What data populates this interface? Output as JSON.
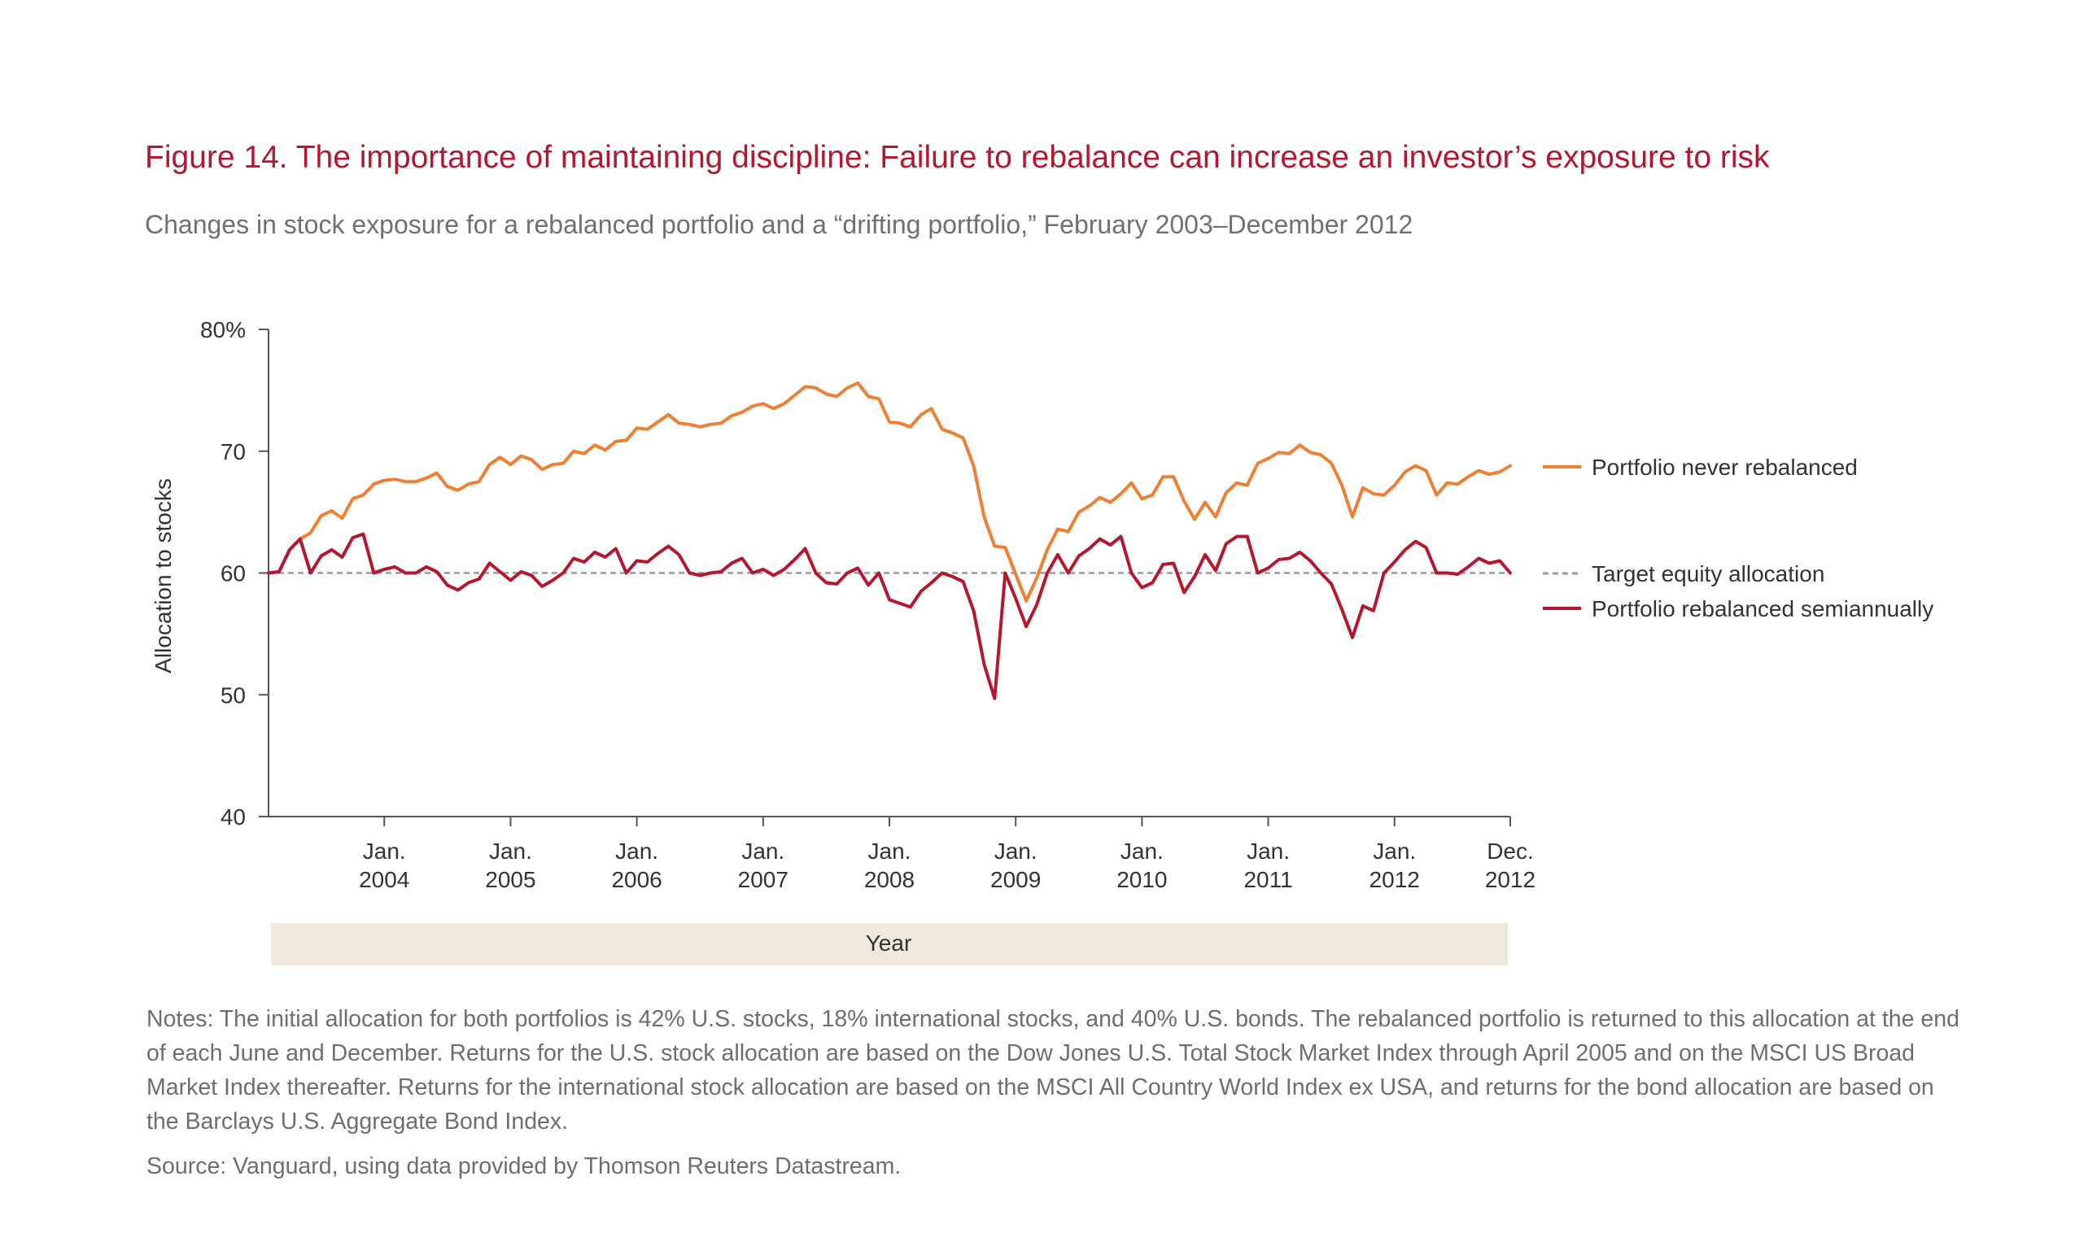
{
  "title": "Figure 14. The importance of maintaining discipline: Failure to rebalance can increase an investor’s exposure to risk",
  "subtitle": "Changes in stock exposure for a rebalanced portfolio and a “drifting portfolio,” February 2003–December 2012",
  "notes": "Notes: The initial allocation for both portfolios is 42% U.S. stocks, 18% international stocks, and 40% U.S. bonds. The rebalanced portfolio is returned to this allocation at the end of each June and December. Returns for the U.S. stock allocation are based on the Dow Jones U.S. Total Stock Market Index through April 2005 and on the MSCI US Broad Market Index thereafter. Returns for the international stock allocation are based on the MSCI All Country World Index ex USA, and returns for the bond allocation are based on the Barclays U.S. Aggregate Bond Index.",
  "source": "Source: Vanguard, using data provided by Thomson Reuters Datastream.",
  "colors": {
    "title": "#b5172f",
    "never_rebalanced": "#ee7f33",
    "rebalanced": "#b5172f",
    "target": "#9a9a9a",
    "xband": "#efe9dd",
    "axis": "#555555"
  },
  "chart_data": {
    "type": "line",
    "ylabel": "Allocation to stocks",
    "xlabel": "Year",
    "ylim": [
      40,
      80
    ],
    "yticks": [
      {
        "value": 80,
        "label": "80%"
      },
      {
        "value": 70,
        "label": "70"
      },
      {
        "value": 60,
        "label": "60"
      },
      {
        "value": 50,
        "label": "50"
      },
      {
        "value": 40,
        "label": "40"
      }
    ],
    "xlim": [
      "2003-02",
      "2012-12"
    ],
    "xticks": [
      {
        "date": "2004-01",
        "line1": "Jan.",
        "line2": "2004"
      },
      {
        "date": "2005-01",
        "line1": "Jan.",
        "line2": "2005"
      },
      {
        "date": "2006-01",
        "line1": "Jan.",
        "line2": "2006"
      },
      {
        "date": "2007-01",
        "line1": "Jan.",
        "line2": "2007"
      },
      {
        "date": "2008-01",
        "line1": "Jan.",
        "line2": "2008"
      },
      {
        "date": "2009-01",
        "line1": "Jan.",
        "line2": "2009"
      },
      {
        "date": "2010-01",
        "line1": "Jan.",
        "line2": "2010"
      },
      {
        "date": "2011-01",
        "line1": "Jan.",
        "line2": "2011"
      },
      {
        "date": "2012-01",
        "line1": "Jan.",
        "line2": "2012"
      },
      {
        "date": "2012-12",
        "line1": "Dec.",
        "line2": "2012"
      }
    ],
    "legend_position": "right",
    "target": {
      "name": "Target equity allocation",
      "value": 60
    },
    "series": [
      {
        "name": "Portfolio never rebalanced",
        "start": "2003-02",
        "values": [
          60.0,
          60.1,
          61.9,
          62.8,
          63.3,
          64.7,
          65.1,
          64.5,
          66.1,
          66.4,
          67.3,
          67.6,
          67.7,
          67.5,
          67.5,
          67.8,
          68.2,
          67.1,
          66.8,
          67.3,
          67.5,
          68.9,
          69.5,
          68.9,
          69.6,
          69.3,
          68.5,
          68.9,
          69.0,
          70.0,
          69.8,
          70.5,
          70.1,
          70.8,
          70.9,
          71.9,
          71.8,
          72.4,
          73.0,
          72.3,
          72.2,
          72.0,
          72.2,
          72.3,
          72.9,
          73.2,
          73.7,
          73.9,
          73.5,
          73.9,
          74.6,
          75.3,
          75.2,
          74.7,
          74.5,
          75.2,
          75.6,
          74.5,
          74.3,
          72.4,
          72.3,
          72.0,
          73.0,
          73.5,
          71.8,
          71.5,
          71.1,
          68.8,
          64.6,
          62.2,
          62.1,
          59.9,
          57.7,
          59.6,
          61.9,
          63.6,
          63.4,
          65.0,
          65.5,
          66.2,
          65.8,
          66.5,
          67.4,
          66.1,
          66.4,
          67.9,
          67.9,
          65.9,
          64.4,
          65.8,
          64.6,
          66.6,
          67.4,
          67.2,
          69.0,
          69.4,
          69.9,
          69.8,
          70.5,
          69.9,
          69.7,
          69.0,
          67.2,
          64.6,
          67.0,
          66.5,
          66.4,
          67.2,
          68.3,
          68.8,
          68.4,
          66.4,
          67.4,
          67.3,
          67.9,
          68.4,
          68.1,
          68.3,
          68.8
        ]
      },
      {
        "name": "Portfolio rebalanced semiannually",
        "start": "2003-02",
        "values": [
          60.0,
          60.1,
          61.9,
          62.8,
          60.0,
          61.4,
          61.9,
          61.3,
          62.9,
          63.2,
          60.0,
          60.3,
          60.5,
          60.0,
          60.0,
          60.5,
          60.1,
          59.0,
          58.6,
          59.2,
          59.5,
          60.8,
          60.1,
          59.4,
          60.1,
          59.8,
          58.9,
          59.4,
          60.0,
          61.2,
          60.9,
          61.7,
          61.3,
          62.0,
          60.0,
          61.0,
          60.9,
          61.6,
          62.2,
          61.5,
          60.0,
          59.8,
          60.0,
          60.1,
          60.8,
          61.2,
          60.0,
          60.3,
          59.8,
          60.3,
          61.1,
          62.0,
          60.0,
          59.2,
          59.1,
          60.0,
          60.4,
          59.0,
          60.0,
          57.8,
          57.5,
          57.2,
          58.5,
          59.2,
          60.0,
          59.7,
          59.3,
          56.9,
          52.5,
          49.7,
          60.0,
          57.9,
          55.6,
          57.4,
          60.0,
          61.5,
          60.0,
          61.4,
          62.0,
          62.8,
          62.3,
          63.0,
          60.0,
          58.8,
          59.2,
          60.7,
          60.8,
          58.4,
          59.7,
          61.5,
          60.2,
          62.4,
          63.0,
          63.0,
          60.0,
          60.4,
          61.1,
          61.2,
          61.7,
          61.0,
          60.0,
          59.1,
          57.0,
          54.7,
          57.3,
          56.9,
          60.0,
          60.9,
          61.9,
          62.6,
          62.1,
          60.0,
          60.0,
          59.9,
          60.5,
          61.2,
          60.8,
          61.0,
          60.0
        ]
      }
    ]
  }
}
